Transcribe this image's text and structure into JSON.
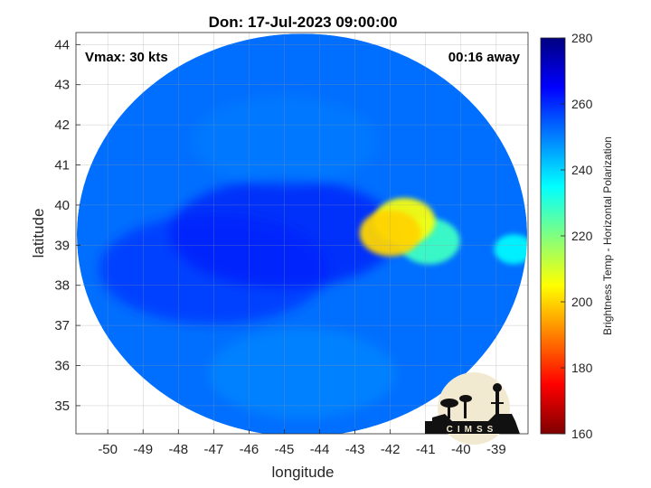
{
  "chart_data": {
    "type": "heatmap",
    "title": "Don: 17-Jul-2023 09:00:00",
    "xlabel": "longitude",
    "ylabel": "latitude",
    "xlim": [
      -50.9,
      -38.1
    ],
    "ylim": [
      34.3,
      44.3
    ],
    "x_ticks": [
      -50,
      -49,
      -48,
      -47,
      -46,
      -45,
      -44,
      -43,
      -42,
      -41,
      -40,
      -39
    ],
    "y_ticks": [
      35,
      36,
      37,
      38,
      39,
      40,
      41,
      42,
      43,
      44
    ],
    "grid": true,
    "annotations": {
      "vmax": "Vmax: 30 kts",
      "time_offset": "00:16 away"
    },
    "swath_center": {
      "lon": -44.5,
      "lat": 39.25
    },
    "colorbar": {
      "label": "Brightness Temp - Horizontal Polarization",
      "min": 160,
      "max": 280,
      "ticks": [
        160,
        180,
        200,
        220,
        240,
        260,
        280
      ],
      "colormap": [
        "#7f0000",
        "#ff0000",
        "#ff8000",
        "#ffff00",
        "#80ff80",
        "#00ffff",
        "#0080ff",
        "#0000ff",
        "#000080"
      ]
    },
    "features": [
      {
        "name": "cold-core",
        "lon": -42.0,
        "lat": 39.3,
        "value": 200
      },
      {
        "name": "cold-lobe-north",
        "lon": -41.6,
        "lat": 39.6,
        "value": 206
      },
      {
        "name": "cold-lobe-east",
        "lon": -40.9,
        "lat": 39.1,
        "value": 228
      },
      {
        "name": "cold-spot-edge",
        "lon": -38.5,
        "lat": 38.9,
        "value": 236
      },
      {
        "name": "warm-center",
        "lon": -45.0,
        "lat": 39.3,
        "value": 266
      },
      {
        "name": "warm-band-west",
        "lon": -47.0,
        "lat": 38.4,
        "value": 262
      },
      {
        "name": "band-north",
        "lon": -45.0,
        "lat": 41.6,
        "value": 250
      },
      {
        "name": "band-south",
        "lon": -44.5,
        "lat": 35.8,
        "value": 248
      }
    ]
  },
  "logo": {
    "text": "CIMSS"
  }
}
